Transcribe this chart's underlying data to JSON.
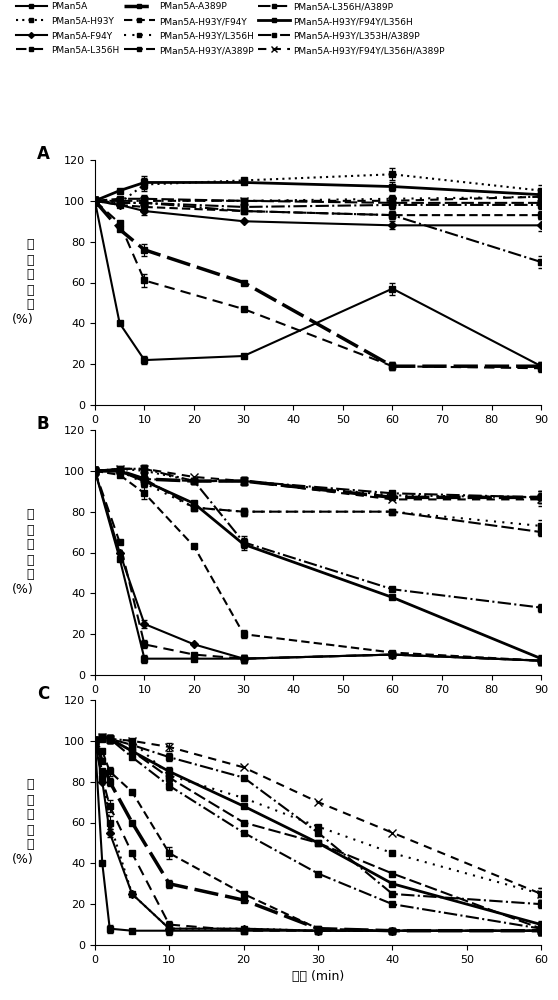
{
  "legend_labels_col1": [
    "PMan5A",
    "PMan5A-L356H",
    "PMan5A-H93Y/L356H",
    "PMan5A-H93Y/F94Y/L356H"
  ],
  "legend_labels_col2": [
    "PMan5A-H93Y",
    "PMan5A-A389P",
    "PMan5A-H93Y/A389P",
    "PMan5A-H93Y/L353H/A389P"
  ],
  "legend_labels_col3": [
    "PMan5A-F94Y",
    "PMan5A-H93Y/F94Y",
    "PMan5A-L356H/A389P",
    "PMan5A-H93Y/F94Y/L356H/A389P"
  ],
  "panel_A": {
    "title": "A",
    "xlim": [
      0,
      90
    ],
    "ylim": [
      0,
      120
    ],
    "xticks": [
      0,
      10,
      20,
      30,
      40,
      50,
      60,
      70,
      80,
      90
    ],
    "yticks": [
      0,
      20,
      40,
      60,
      80,
      100,
      120
    ],
    "series": [
      {
        "x": [
          0,
          5,
          10,
          30,
          60,
          90
        ],
        "y": [
          100,
          40,
          22,
          24,
          57,
          19
        ],
        "yerr": [
          2,
          3,
          2,
          3,
          3,
          2
        ]
      },
      {
        "x": [
          0,
          5,
          10,
          30,
          60,
          90
        ],
        "y": [
          100,
          99,
          108,
          110,
          113,
          105
        ],
        "yerr": [
          2,
          2,
          3,
          2,
          3,
          3
        ]
      },
      {
        "x": [
          0,
          5,
          10,
          30,
          60,
          90
        ],
        "y": [
          100,
          98,
          95,
          90,
          88,
          88
        ],
        "yerr": [
          2,
          2,
          2,
          2,
          2,
          3
        ]
      },
      {
        "x": [
          0,
          5,
          10,
          30,
          60,
          90
        ],
        "y": [
          100,
          89,
          61,
          47,
          19,
          18
        ],
        "yerr": [
          2,
          3,
          3,
          3,
          2,
          2
        ]
      },
      {
        "x": [
          0,
          5,
          10,
          30,
          60,
          90
        ],
        "y": [
          100,
          86,
          76,
          60,
          19,
          19
        ],
        "yerr": [
          2,
          2,
          3,
          3,
          2,
          2
        ]
      },
      {
        "x": [
          0,
          5,
          10,
          30,
          60,
          90
        ],
        "y": [
          100,
          98,
          97,
          95,
          93,
          93
        ],
        "yerr": [
          2,
          2,
          2,
          2,
          2,
          2
        ]
      },
      {
        "x": [
          0,
          5,
          10,
          30,
          60,
          90
        ],
        "y": [
          100,
          100,
          100,
          100,
          101,
          102
        ],
        "yerr": [
          2,
          2,
          2,
          2,
          2,
          2
        ]
      },
      {
        "x": [
          0,
          5,
          10,
          30,
          60,
          90
        ],
        "y": [
          100,
          99,
          99,
          97,
          98,
          98
        ],
        "yerr": [
          2,
          2,
          2,
          2,
          2,
          2
        ]
      },
      {
        "x": [
          0,
          5,
          10,
          30,
          60,
          90
        ],
        "y": [
          100,
          101,
          101,
          100,
          99,
          99
        ],
        "yerr": [
          2,
          2,
          2,
          2,
          2,
          2
        ]
      },
      {
        "x": [
          0,
          5,
          10,
          30,
          60,
          90
        ],
        "y": [
          100,
          105,
          109,
          109,
          107,
          103
        ],
        "yerr": [
          2,
          2,
          3,
          3,
          2,
          2
        ]
      },
      {
        "x": [
          0,
          5,
          10,
          30,
          60,
          90
        ],
        "y": [
          100,
          99,
          99,
          95,
          93,
          70
        ],
        "yerr": [
          2,
          2,
          2,
          2,
          2,
          3
        ]
      },
      {
        "x": [
          0,
          5,
          10,
          30,
          60,
          90
        ],
        "y": [
          100,
          100,
          100,
          100,
          100,
          102
        ],
        "yerr": [
          2,
          2,
          2,
          2,
          2,
          2
        ]
      }
    ]
  },
  "panel_B": {
    "title": "B",
    "xlim": [
      0,
      90
    ],
    "ylim": [
      0,
      120
    ],
    "xticks": [
      0,
      10,
      20,
      30,
      40,
      50,
      60,
      70,
      80,
      90
    ],
    "yticks": [
      0,
      20,
      40,
      60,
      80,
      100,
      120
    ],
    "series": [
      {
        "x": [
          0,
          5,
          10,
          20,
          30,
          60,
          90
        ],
        "y": [
          100,
          57,
          8,
          8,
          8,
          10,
          7
        ],
        "yerr": [
          2,
          3,
          2,
          2,
          2,
          2,
          2
        ]
      },
      {
        "x": [
          0,
          5,
          10,
          20,
          30,
          60,
          90
        ],
        "y": [
          100,
          101,
          100,
          95,
          95,
          88,
          87
        ],
        "yerr": [
          2,
          2,
          3,
          2,
          2,
          3,
          3
        ]
      },
      {
        "x": [
          0,
          5,
          10,
          20,
          30,
          60,
          90
        ],
        "y": [
          100,
          60,
          25,
          15,
          8,
          10,
          7
        ],
        "yerr": [
          2,
          3,
          2,
          2,
          2,
          2,
          2
        ]
      },
      {
        "x": [
          0,
          5,
          10,
          20,
          30,
          60,
          90
        ],
        "y": [
          100,
          65,
          15,
          10,
          8,
          10,
          7
        ],
        "yerr": [
          2,
          3,
          2,
          2,
          2,
          2,
          2
        ]
      },
      {
        "x": [
          0,
          5,
          10,
          20,
          30,
          60,
          90
        ],
        "y": [
          100,
          100,
          96,
          95,
          95,
          87,
          87
        ],
        "yerr": [
          2,
          2,
          2,
          2,
          2,
          3,
          3
        ]
      },
      {
        "x": [
          0,
          5,
          10,
          20,
          30,
          60,
          90
        ],
        "y": [
          100,
          98,
          89,
          63,
          20,
          11,
          7
        ],
        "yerr": [
          2,
          2,
          3,
          3,
          2,
          2,
          2
        ]
      },
      {
        "x": [
          0,
          5,
          10,
          20,
          30,
          60,
          90
        ],
        "y": [
          100,
          100,
          94,
          82,
          80,
          80,
          73
        ],
        "yerr": [
          2,
          2,
          2,
          3,
          2,
          2,
          3
        ]
      },
      {
        "x": [
          0,
          5,
          10,
          20,
          30,
          60,
          90
        ],
        "y": [
          100,
          101,
          101,
          95,
          65,
          42,
          33
        ],
        "yerr": [
          2,
          2,
          2,
          2,
          3,
          3,
          2
        ]
      },
      {
        "x": [
          0,
          5,
          10,
          20,
          30,
          60,
          90
        ],
        "y": [
          100,
          100,
          96,
          82,
          80,
          80,
          70
        ],
        "yerr": [
          2,
          2,
          2,
          3,
          2,
          2,
          2
        ]
      },
      {
        "x": [
          0,
          5,
          10,
          20,
          30,
          60,
          90
        ],
        "y": [
          100,
          100,
          95,
          84,
          64,
          38,
          8
        ],
        "yerr": [
          2,
          2,
          2,
          3,
          3,
          2,
          2
        ]
      },
      {
        "x": [
          0,
          5,
          10,
          20,
          30,
          60,
          90
        ],
        "y": [
          100,
          100,
          96,
          95,
          95,
          89,
          87
        ],
        "yerr": [
          2,
          2,
          2,
          2,
          2,
          3,
          3
        ]
      },
      {
        "x": [
          0,
          5,
          10,
          20,
          30,
          60,
          90
        ],
        "y": [
          100,
          101,
          101,
          97,
          95,
          86,
          86
        ],
        "yerr": [
          2,
          2,
          2,
          2,
          2,
          3,
          3
        ]
      }
    ]
  },
  "panel_C": {
    "title": "C",
    "xlim": [
      0,
      60
    ],
    "ylim": [
      0,
      120
    ],
    "xticks": [
      0,
      10,
      20,
      30,
      40,
      50,
      60
    ],
    "yticks": [
      0,
      20,
      40,
      60,
      80,
      100,
      120
    ],
    "series": [
      {
        "x": [
          0,
          1,
          2,
          5,
          10,
          20,
          30,
          40,
          60
        ],
        "y": [
          100,
          40,
          8,
          7,
          7,
          7,
          7,
          7,
          7
        ],
        "yerr": [
          2,
          3,
          2,
          2,
          2,
          2,
          2,
          2,
          2
        ]
      },
      {
        "x": [
          0,
          1,
          2,
          5,
          10,
          20,
          30,
          40,
          60
        ],
        "y": [
          100,
          85,
          60,
          25,
          8,
          8,
          7,
          7,
          7
        ],
        "yerr": [
          2,
          3,
          3,
          2,
          2,
          2,
          2,
          2,
          2
        ]
      },
      {
        "x": [
          0,
          1,
          2,
          5,
          10,
          20,
          30,
          40,
          60
        ],
        "y": [
          100,
          80,
          55,
          25,
          8,
          8,
          7,
          7,
          7
        ],
        "yerr": [
          2,
          3,
          2,
          2,
          2,
          2,
          2,
          2,
          2
        ]
      },
      {
        "x": [
          0,
          1,
          2,
          5,
          10,
          20,
          30,
          40,
          60
        ],
        "y": [
          100,
          82,
          68,
          45,
          10,
          7,
          7,
          7,
          7
        ],
        "yerr": [
          2,
          2,
          3,
          2,
          2,
          2,
          2,
          2,
          2
        ]
      },
      {
        "x": [
          0,
          1,
          2,
          5,
          10,
          20,
          30,
          40,
          60
        ],
        "y": [
          100,
          90,
          80,
          60,
          30,
          22,
          8,
          7,
          7
        ],
        "yerr": [
          2,
          2,
          2,
          3,
          2,
          2,
          2,
          2,
          2
        ]
      },
      {
        "x": [
          0,
          1,
          2,
          5,
          10,
          20,
          30,
          40,
          60
        ],
        "y": [
          100,
          95,
          85,
          75,
          45,
          25,
          8,
          7,
          7
        ],
        "yerr": [
          2,
          2,
          2,
          2,
          3,
          2,
          2,
          2,
          2
        ]
      },
      {
        "x": [
          0,
          1,
          2,
          5,
          10,
          20,
          30,
          40,
          60
        ],
        "y": [
          100,
          101,
          101,
          100,
          83,
          72,
          58,
          45,
          25
        ],
        "yerr": [
          2,
          2,
          2,
          2,
          2,
          2,
          3,
          3,
          3
        ]
      },
      {
        "x": [
          0,
          1,
          2,
          5,
          10,
          20,
          30,
          40,
          60
        ],
        "y": [
          100,
          102,
          101,
          92,
          78,
          55,
          35,
          20,
          8
        ],
        "yerr": [
          2,
          2,
          2,
          2,
          2,
          3,
          2,
          2,
          2
        ]
      },
      {
        "x": [
          0,
          1,
          2,
          5,
          10,
          20,
          30,
          40,
          60
        ],
        "y": [
          100,
          102,
          101,
          95,
          82,
          60,
          50,
          35,
          8
        ],
        "yerr": [
          2,
          2,
          2,
          2,
          2,
          2,
          2,
          2,
          2
        ]
      },
      {
        "x": [
          0,
          1,
          2,
          5,
          10,
          20,
          30,
          40,
          60
        ],
        "y": [
          100,
          102,
          101,
          95,
          85,
          68,
          50,
          30,
          10
        ],
        "yerr": [
          2,
          2,
          2,
          2,
          2,
          3,
          2,
          2,
          2
        ]
      },
      {
        "x": [
          0,
          1,
          2,
          5,
          10,
          20,
          30,
          40,
          60
        ],
        "y": [
          100,
          102,
          101,
          98,
          92,
          82,
          55,
          25,
          20
        ],
        "yerr": [
          2,
          2,
          2,
          2,
          2,
          3,
          3,
          2,
          2
        ]
      },
      {
        "x": [
          0,
          1,
          2,
          5,
          10,
          20,
          30,
          40,
          60
        ],
        "y": [
          100,
          102,
          101,
          100,
          97,
          87,
          70,
          55,
          25
        ],
        "yerr": [
          2,
          2,
          2,
          2,
          2,
          3,
          3,
          3,
          3
        ]
      }
    ]
  },
  "ylabel": "相\n对\n酶\n活\n力\n(%)",
  "xlabel": "时间 (min)"
}
